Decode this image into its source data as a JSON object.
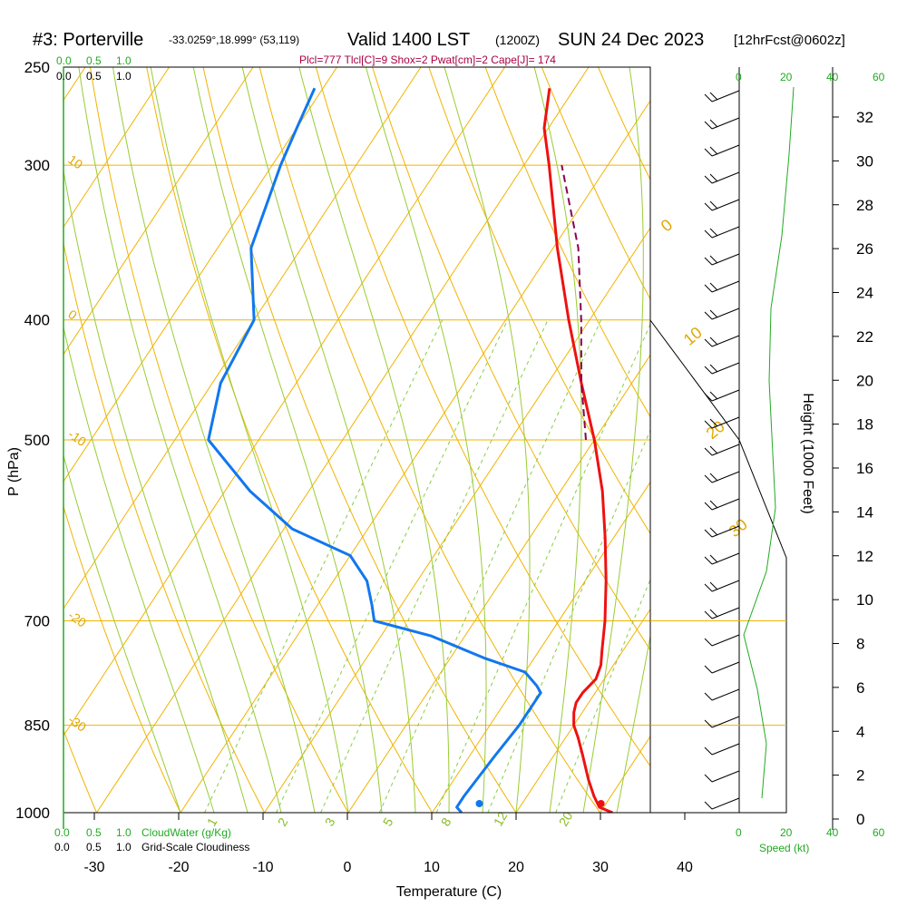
{
  "header": {
    "station": "#3: Porterville",
    "coords": "-33.0259°,18.999° (53,119)",
    "valid": "Valid 1400 LST",
    "utc": "(1200Z)",
    "date": "SUN 24 Dec 2023",
    "forecast": "[12hrFcst@0602z]"
  },
  "indices": "Plcl=777 Tlcl[C]=9 Shox=2 Pwat[cm]=2 Cape[J]= 174",
  "colors": {
    "isobar": "#f0b400",
    "isotherm": "#f0b400",
    "dry_adiabat": "#f0b400",
    "moist_adiabat": "#99cc33",
    "mixing_ratio": "#88cc44",
    "temperature": "#ee1111",
    "dewpoint": "#1177ee",
    "parcel": "#880055",
    "speed": "#22aa22"
  },
  "cloud_scales": {
    "cloudwater_ticks": [
      "0.0",
      "0.5",
      "1.0"
    ],
    "cloudiness_ticks": [
      "0.0",
      "0.5",
      "1.0"
    ],
    "cloudwater_label": "CloudWater (g/Kg)",
    "cloudiness_label": "Grid-Scale Cloudiness"
  },
  "speed_axis": {
    "ticks": [
      "0",
      "20",
      "40",
      "60"
    ],
    "label": "Speed (kt)"
  },
  "chart_data": {
    "type": "line",
    "xlabel": "Temperature (C)",
    "ylabel": "P (hPa)",
    "y2label": "Height (1000 Feet)",
    "xlim": [
      -35,
      45
    ],
    "ylim": [
      1000,
      250
    ],
    "x_ticks": [
      -30,
      -20,
      -10,
      0,
      10,
      20,
      30,
      40
    ],
    "p_ticks": [
      250,
      300,
      400,
      500,
      700,
      850,
      1000
    ],
    "height_ticks": [
      0,
      2,
      4,
      6,
      8,
      10,
      12,
      14,
      16,
      18,
      20,
      22,
      24,
      26,
      28,
      30,
      32
    ],
    "isotherm_labels": [
      "10",
      "0",
      "-10",
      "-20",
      "-30"
    ],
    "dry_adiabat_labels": [
      "0",
      "10",
      "20",
      "30"
    ],
    "mixing_ratio_labels": [
      "1",
      "2",
      "3",
      "5",
      "8",
      "12",
      "20"
    ],
    "series": [
      {
        "key": "temperature",
        "points": [
          [
            1000,
            31.5
          ],
          [
            990,
            29.5
          ],
          [
            970,
            28
          ],
          [
            940,
            26
          ],
          [
            900,
            23.5
          ],
          [
            870,
            21.5
          ],
          [
            850,
            20
          ],
          [
            830,
            19
          ],
          [
            815,
            18.5
          ],
          [
            800,
            18.5
          ],
          [
            780,
            19
          ],
          [
            760,
            18.5
          ],
          [
            740,
            17.5
          ],
          [
            700,
            15.5
          ],
          [
            650,
            12.5
          ],
          [
            600,
            9
          ],
          [
            550,
            5
          ],
          [
            500,
            0
          ],
          [
            450,
            -6
          ],
          [
            400,
            -12.5
          ],
          [
            350,
            -19.5
          ],
          [
            300,
            -27
          ],
          [
            280,
            -30.5
          ],
          [
            260,
            -33
          ]
        ]
      },
      {
        "key": "dewpoint",
        "points": [
          [
            1000,
            13.5
          ],
          [
            990,
            12.5
          ],
          [
            970,
            12.5
          ],
          [
            900,
            13
          ],
          [
            850,
            13.5
          ],
          [
            800,
            13.5
          ],
          [
            790,
            12.5
          ],
          [
            770,
            10
          ],
          [
            750,
            4
          ],
          [
            720,
            -4
          ],
          [
            700,
            -12
          ],
          [
            680,
            -13.5
          ],
          [
            650,
            -16
          ],
          [
            620,
            -20
          ],
          [
            590,
            -29
          ],
          [
            550,
            -37
          ],
          [
            500,
            -46
          ],
          [
            450,
            -49
          ],
          [
            400,
            -50
          ],
          [
            350,
            -56
          ],
          [
            300,
            -59
          ],
          [
            280,
            -60
          ],
          [
            260,
            -61
          ]
        ]
      },
      {
        "key": "parcel",
        "points": [
          [
            500,
            -1
          ],
          [
            450,
            -6
          ],
          [
            400,
            -11
          ],
          [
            350,
            -17
          ],
          [
            300,
            -25.5
          ]
        ]
      }
    ],
    "surface_markers": [
      {
        "key": "temperature",
        "value": 32.5
      },
      {
        "key": "dewpoint",
        "value": 18
      }
    ],
    "wind_barbs": "barbs plotted along right panel from 1000 to 260 hPa"
  }
}
